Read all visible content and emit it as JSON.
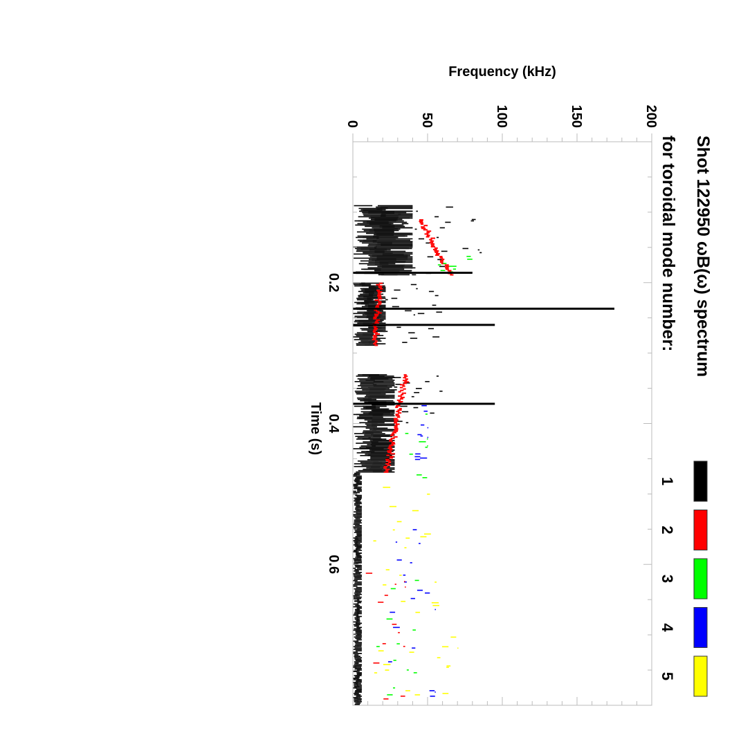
{
  "chart_data": {
    "type": "heatmap",
    "title_line1": "Shot 122950 ωB(ω) spectrum",
    "title_line2": "for toroidal mode number:",
    "xlabel": "Time (s)",
    "ylabel": "Frequency (kHz)",
    "xlim": [
      0,
      0.8
    ],
    "ylim": [
      0,
      200
    ],
    "x_ticks": [
      "0.2",
      "0.4",
      "0.6"
    ],
    "x_tick_values": [
      0.2,
      0.4,
      0.6
    ],
    "y_ticks": [
      "0",
      "50",
      "100",
      "150",
      "200"
    ],
    "y_tick_values": [
      0,
      50,
      100,
      150,
      200
    ],
    "orientation": "rotated 90 degrees clockwise",
    "legend": [
      {
        "label": "1",
        "color": "#000000"
      },
      {
        "label": "2",
        "color": "#ff0000"
      },
      {
        "label": "3",
        "color": "#00ff00"
      },
      {
        "label": "4",
        "color": "#0000ff"
      },
      {
        "label": "5",
        "color": "#ffff00"
      }
    ],
    "regions": [
      {
        "mode": 1,
        "t": [
          0.09,
          0.19
        ],
        "f": [
          0,
          40
        ],
        "density": 0.9
      },
      {
        "mode": 1,
        "t": [
          0.09,
          0.19
        ],
        "f": [
          30,
          90
        ],
        "density": 0.25
      },
      {
        "mode": 2,
        "t": [
          0.11,
          0.19
        ],
        "f_start": 45,
        "f_end": 65,
        "line": true
      },
      {
        "mode": 3,
        "t": [
          0.16,
          0.19
        ],
        "f": [
          55,
          80
        ],
        "density": 0.2
      },
      {
        "mode": 1,
        "t": [
          0.2,
          0.29
        ],
        "f": [
          0,
          22
        ],
        "density": 0.95
      },
      {
        "mode": 1,
        "t": [
          0.2,
          0.29
        ],
        "f": [
          20,
          60
        ],
        "density": 0.2
      },
      {
        "mode": 2,
        "t": [
          0.2,
          0.29
        ],
        "f_start": 18,
        "f_end": 14,
        "line": true
      },
      {
        "mode": 1,
        "t": [
          0.33,
          0.47
        ],
        "f": [
          0,
          28
        ],
        "density": 0.85
      },
      {
        "mode": 1,
        "t": [
          0.33,
          0.4
        ],
        "f": [
          25,
          60
        ],
        "density": 0.2
      },
      {
        "mode": 2,
        "t": [
          0.33,
          0.47
        ],
        "f_start": 35,
        "f_end": 22,
        "line": true
      },
      {
        "mode": 4,
        "t": [
          0.37,
          0.46
        ],
        "f": [
          40,
          50
        ],
        "density": 0.1
      },
      {
        "mode": 3,
        "t": [
          0.38,
          0.48
        ],
        "f": [
          35,
          50
        ],
        "density": 0.08
      },
      {
        "mode": 1,
        "t": [
          0.47,
          0.8
        ],
        "f": [
          0,
          6
        ],
        "density": 0.6
      },
      {
        "mode": 5,
        "t": [
          0.48,
          0.8
        ],
        "f": [
          10,
          70
        ],
        "density": 0.12
      },
      {
        "mode": 4,
        "t": [
          0.55,
          0.8
        ],
        "f": [
          20,
          55
        ],
        "density": 0.06
      },
      {
        "mode": 3,
        "t": [
          0.62,
          0.8
        ],
        "f": [
          15,
          45
        ],
        "density": 0.06
      },
      {
        "mode": 2,
        "t": [
          0.6,
          0.8
        ],
        "f": [
          5,
          35
        ],
        "density": 0.06
      }
    ],
    "spikes": [
      {
        "mode": 1,
        "t": 0.237,
        "f_max": 175
      },
      {
        "mode": 1,
        "t": 0.26,
        "f_max": 95
      },
      {
        "mode": 1,
        "t": 0.372,
        "f_max": 95
      },
      {
        "mode": 1,
        "t": 0.186,
        "f_max": 80
      }
    ]
  }
}
